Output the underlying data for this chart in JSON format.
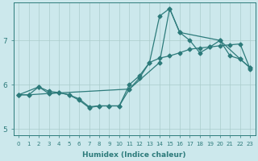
{
  "xlabel": "Humidex (Indice chaleur)",
  "bg_color": "#cce8ec",
  "line_color": "#2d7b7b",
  "grid_color": "#aacccc",
  "xlim": [
    -0.5,
    23.5
  ],
  "ylim": [
    4.85,
    7.85
  ],
  "xticks": [
    0,
    1,
    2,
    3,
    4,
    5,
    6,
    7,
    8,
    9,
    10,
    11,
    12,
    13,
    14,
    15,
    16,
    17,
    18,
    19,
    20,
    21,
    22,
    23
  ],
  "yticks": [
    5,
    6,
    7
  ],
  "line1_x": [
    0,
    1,
    2,
    3,
    4,
    5,
    6,
    7,
    8,
    9,
    10,
    11,
    12,
    13,
    14,
    15,
    16,
    17,
    18,
    19,
    20,
    21,
    22,
    23
  ],
  "line1_y": [
    5.77,
    5.77,
    5.95,
    5.85,
    5.82,
    5.77,
    5.65,
    5.48,
    5.52,
    5.52,
    5.52,
    5.9,
    6.15,
    6.5,
    6.6,
    6.65,
    6.72,
    6.8,
    6.83,
    6.85,
    6.88,
    6.9,
    6.92,
    6.35
  ],
  "line2_x": [
    0,
    2,
    3,
    4,
    5,
    6,
    7,
    8,
    9,
    10,
    11,
    12,
    13,
    14,
    15,
    16,
    17,
    18,
    19,
    20,
    21,
    22,
    23
  ],
  "line2_y": [
    5.77,
    5.95,
    5.8,
    5.82,
    5.77,
    5.68,
    5.5,
    5.52,
    5.52,
    5.52,
    6.0,
    6.2,
    6.5,
    7.55,
    7.72,
    7.18,
    7.0,
    6.72,
    6.85,
    7.0,
    6.65,
    6.58,
    6.38
  ],
  "line3_x": [
    0,
    1,
    3,
    11,
    14,
    15,
    16,
    20,
    22,
    23
  ],
  "line3_y": [
    5.77,
    5.77,
    5.8,
    5.9,
    6.5,
    7.72,
    7.18,
    7.0,
    6.58,
    6.38
  ],
  "marker": "D",
  "markersize": 2.5,
  "linewidth": 0.9
}
